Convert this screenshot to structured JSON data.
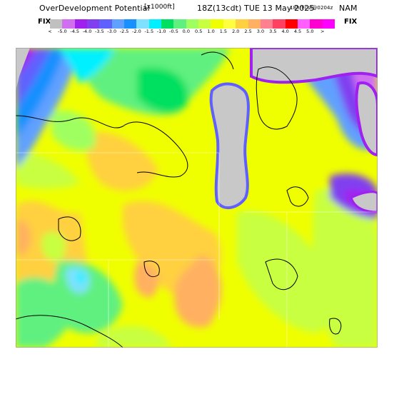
{
  "header": {
    "product": "OverDevelopment Potential",
    "units": "[x1000ft]",
    "valid_time": "18Z(13cdt) TUE 13 May 2025",
    "forecast": "18hrFcst@0204z",
    "model": "NAM"
  },
  "colorbar": {
    "left_label": "FIX",
    "right_label": "FIX",
    "low_arrow": "<",
    "high_arrow": ">",
    "ticks": [
      "-5.0",
      "-4.5",
      "-4.0",
      "-3.5",
      "-3.0",
      "-2.5",
      "-2.0",
      "-1.5",
      "-1.0",
      "-0.5",
      "0.0",
      "0.5",
      "1.0",
      "1.5",
      "2.0",
      "2.5",
      "3.0",
      "3.5",
      "4.0",
      "4.5",
      "5.0"
    ],
    "colors": [
      "#c0c0c0",
      "#d070f0",
      "#a020f0",
      "#8040f0",
      "#6060ff",
      "#60a0ff",
      "#1890ff",
      "#80e0ff",
      "#00f0ff",
      "#00e060",
      "#60f080",
      "#a0ff60",
      "#c8ff40",
      "#f0ff00",
      "#ffff40",
      "#ffd040",
      "#ffb060",
      "#ff8090",
      "#ff4060",
      "#ff0000",
      "#ff60ff",
      "#ff00d0",
      "#ff00ff"
    ]
  },
  "map": {
    "legend_colors": {
      "no_data": "#c8c8c8",
      "lake": "#c8c8c8",
      "neutral": "#ffff00"
    }
  }
}
